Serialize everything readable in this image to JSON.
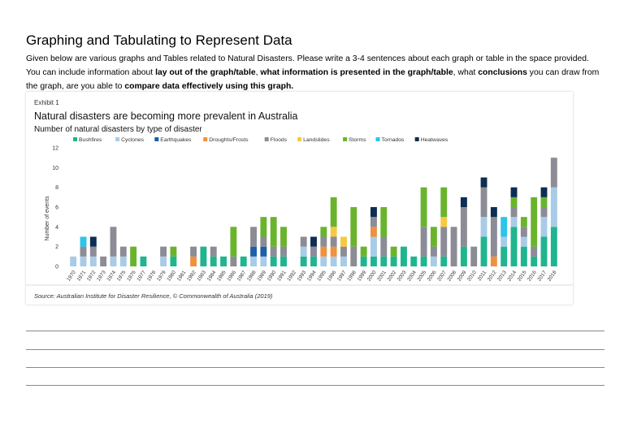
{
  "worksheet": {
    "heading": "Graphing and Tabulating to Represent Data",
    "instructions": [
      {
        "text": "Given below are various graphs and Tables related to Natural Disasters. Please write a 3-4 sentences about each graph or table in the space provided. You can include information about ",
        "bold": false
      },
      {
        "text": "lay out of the graph/table",
        "bold": true
      },
      {
        "text": ", ",
        "bold": false
      },
      {
        "text": "what information is presented in the graph/table",
        "bold": true
      },
      {
        "text": ", what ",
        "bold": false
      },
      {
        "text": "conclusions",
        "bold": true
      },
      {
        "text": " you can draw from the graph, are you able to ",
        "bold": false
      },
      {
        "text": "compare data effectively using this graph.",
        "bold": true
      }
    ],
    "answer_lines": 4
  },
  "chart_data": {
    "type": "bar",
    "stacked": true,
    "exhibit": "Exhibit 1",
    "title": "Natural disasters are becoming more prevalent in Australia",
    "subtitle": "Number of natural disasters by type of disaster",
    "ylabel": "Number of events",
    "xlabel": "",
    "ylim": [
      0,
      12
    ],
    "yticks": [
      0,
      2,
      4,
      6,
      8,
      10,
      12
    ],
    "grid": false,
    "legend_position": "top",
    "source": "Source: Australian Institute for Disaster Resilience, © Commonwealth of Australia (2019)",
    "categories": [
      "1970",
      "1971",
      "1972",
      "1973",
      "1974",
      "1975",
      "1976",
      "1977",
      "1978",
      "1979",
      "1980",
      "1981",
      "1982",
      "1983",
      "1984",
      "1985",
      "1986",
      "1987",
      "1988",
      "1989",
      "1990",
      "1991",
      "1992",
      "1993",
      "1994",
      "1995",
      "1996",
      "1997",
      "1998",
      "1999",
      "2000",
      "2001",
      "2002",
      "2003",
      "2004",
      "2005",
      "2006",
      "2007",
      "2008",
      "2009",
      "2010",
      "2011",
      "2012",
      "2013",
      "2014",
      "2015",
      "2016",
      "2017",
      "2018"
    ],
    "series": [
      {
        "name": "Bushfires",
        "color": "#1fb58f",
        "values": [
          0,
          0,
          0,
          0,
          0,
          0,
          0,
          1,
          0,
          0,
          1,
          0,
          0,
          2,
          1,
          1,
          0,
          1,
          0,
          0,
          1,
          1,
          0,
          1,
          1,
          0,
          0,
          0,
          0,
          1,
          1,
          1,
          1,
          2,
          1,
          1,
          0,
          1,
          0,
          2,
          0,
          3,
          0,
          2,
          4,
          2,
          1,
          3,
          4
        ]
      },
      {
        "name": "Cyclones",
        "color": "#a8cbe8",
        "values": [
          1,
          1,
          1,
          0,
          1,
          1,
          0,
          0,
          0,
          1,
          0,
          0,
          0,
          0,
          0,
          0,
          0,
          0,
          1,
          1,
          0,
          0,
          0,
          1,
          0,
          1,
          1,
          1,
          0,
          0,
          2,
          0,
          0,
          0,
          0,
          0,
          1,
          0,
          0,
          0,
          0,
          2,
          0,
          1,
          1,
          1,
          0,
          2,
          4
        ]
      },
      {
        "name": "Earthquakes",
        "color": "#1f5fa8",
        "values": [
          0,
          0,
          0,
          0,
          0,
          0,
          0,
          0,
          0,
          0,
          0,
          0,
          0,
          0,
          0,
          0,
          0,
          0,
          1,
          1,
          0,
          0,
          0,
          0,
          0,
          0,
          0,
          0,
          0,
          0,
          0,
          0,
          0,
          0,
          0,
          0,
          0,
          0,
          0,
          0,
          0,
          0,
          0,
          0,
          0,
          0,
          0,
          0,
          0
        ]
      },
      {
        "name": "Droughts/Frosts",
        "color": "#f0913e",
        "values": [
          0,
          0,
          0,
          0,
          0,
          0,
          0,
          0,
          0,
          0,
          0,
          0,
          1,
          0,
          0,
          0,
          0,
          0,
          0,
          0,
          0,
          0,
          0,
          0,
          0,
          1,
          1,
          0,
          0,
          0,
          1,
          0,
          0,
          0,
          0,
          0,
          0,
          0,
          0,
          0,
          0,
          0,
          1,
          0,
          0,
          0,
          0,
          0,
          0
        ]
      },
      {
        "name": "Floods",
        "color": "#8c8c96",
        "values": [
          0,
          1,
          1,
          1,
          3,
          1,
          0,
          0,
          0,
          1,
          0,
          0,
          1,
          0,
          1,
          0,
          1,
          0,
          2,
          1,
          1,
          1,
          0,
          1,
          1,
          1,
          1,
          1,
          2,
          0,
          1,
          2,
          0,
          0,
          0,
          3,
          1,
          3,
          4,
          4,
          2,
          3,
          4,
          0,
          1,
          1,
          1,
          1,
          3
        ]
      },
      {
        "name": "Landslides",
        "color": "#f7c843",
        "values": [
          0,
          0,
          0,
          0,
          0,
          0,
          0,
          0,
          0,
          0,
          0,
          0,
          0,
          0,
          0,
          0,
          0,
          0,
          0,
          0,
          0,
          0,
          0,
          0,
          0,
          0,
          1,
          1,
          0,
          0,
          0,
          0,
          0,
          0,
          0,
          0,
          0,
          1,
          0,
          0,
          0,
          0,
          0,
          0,
          0,
          0,
          0,
          0,
          0
        ]
      },
      {
        "name": "Storms",
        "color": "#6ab42d",
        "values": [
          0,
          0,
          0,
          0,
          0,
          0,
          2,
          0,
          0,
          0,
          1,
          0,
          0,
          0,
          0,
          0,
          3,
          0,
          0,
          2,
          3,
          2,
          0,
          0,
          0,
          1,
          3,
          0,
          4,
          1,
          0,
          3,
          1,
          0,
          0,
          4,
          2,
          3,
          0,
          0,
          0,
          0,
          0,
          0,
          1,
          1,
          5,
          1,
          0
        ]
      },
      {
        "name": "Tornados",
        "color": "#2dc4e8",
        "values": [
          0,
          1,
          0,
          0,
          0,
          0,
          0,
          0,
          0,
          0,
          0,
          0,
          0,
          0,
          0,
          0,
          0,
          0,
          0,
          0,
          0,
          0,
          0,
          0,
          0,
          0,
          0,
          0,
          0,
          0,
          0,
          0,
          0,
          0,
          0,
          0,
          0,
          0,
          0,
          0,
          0,
          0,
          0,
          2,
          0,
          0,
          0,
          0,
          0
        ]
      },
      {
        "name": "Heatwaves",
        "color": "#0d2d52",
        "values": [
          0,
          0,
          1,
          0,
          0,
          0,
          0,
          0,
          0,
          0,
          0,
          0,
          0,
          0,
          0,
          0,
          0,
          0,
          0,
          0,
          0,
          0,
          0,
          0,
          1,
          0,
          0,
          0,
          0,
          0,
          1,
          0,
          0,
          0,
          0,
          0,
          0,
          0,
          0,
          1,
          0,
          1,
          1,
          0,
          1,
          0,
          0,
          1,
          0
        ]
      }
    ]
  }
}
